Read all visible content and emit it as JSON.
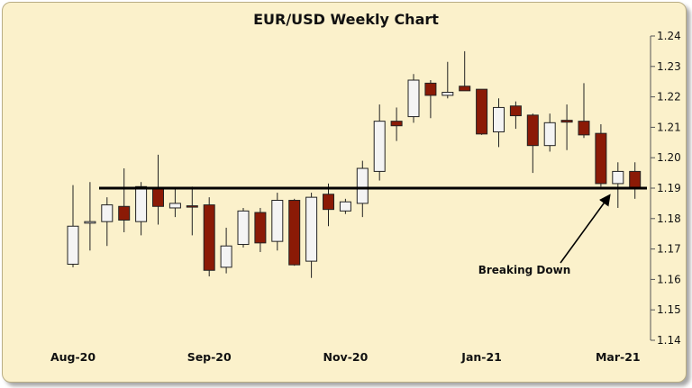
{
  "chart_data": {
    "type": "candlestick",
    "title": "EUR/USD Weekly Chart",
    "xlabel": "",
    "ylabel": "",
    "ylim": [
      1.14,
      1.24
    ],
    "yticks": [
      "1.14",
      "1.15",
      "1.16",
      "1.17",
      "1.18",
      "1.19",
      "1.20",
      "1.21",
      "1.22",
      "1.23",
      "1.24"
    ],
    "x_tick_labels": [
      {
        "label": "Aug-20",
        "index": 0
      },
      {
        "label": "Sep-20",
        "index": 8
      },
      {
        "label": "Nov-20",
        "index": 16
      },
      {
        "label": "Jan-21",
        "index": 24
      },
      {
        "label": "Mar-21",
        "index": 32
      }
    ],
    "colors": {
      "bullish": "#f4f4f4",
      "bearish": "#8b1a06",
      "outline": "#222222",
      "support": "#000000"
    },
    "candles": [
      {
        "open": 1.165,
        "high": 1.191,
        "low": 1.164,
        "close": 1.1775
      },
      {
        "open": 1.1785,
        "high": 1.192,
        "low": 1.1695,
        "close": 1.179
      },
      {
        "open": 1.179,
        "high": 1.187,
        "low": 1.171,
        "close": 1.1845
      },
      {
        "open": 1.184,
        "high": 1.1965,
        "low": 1.1755,
        "close": 1.1795
      },
      {
        "open": 1.179,
        "high": 1.192,
        "low": 1.1745,
        "close": 1.1905
      },
      {
        "open": 1.19,
        "high": 1.201,
        "low": 1.178,
        "close": 1.184
      },
      {
        "open": 1.1835,
        "high": 1.19,
        "low": 1.1805,
        "close": 1.185
      },
      {
        "open": 1.1842,
        "high": 1.1905,
        "low": 1.1745,
        "close": 1.1838
      },
      {
        "open": 1.1845,
        "high": 1.187,
        "low": 1.161,
        "close": 1.163
      },
      {
        "open": 1.164,
        "high": 1.177,
        "low": 1.162,
        "close": 1.171
      },
      {
        "open": 1.1715,
        "high": 1.1835,
        "low": 1.1705,
        "close": 1.1825
      },
      {
        "open": 1.182,
        "high": 1.1835,
        "low": 1.169,
        "close": 1.172
      },
      {
        "open": 1.1725,
        "high": 1.1885,
        "low": 1.1695,
        "close": 1.186
      },
      {
        "open": 1.186,
        "high": 1.1865,
        "low": 1.1645,
        "close": 1.1648
      },
      {
        "open": 1.166,
        "high": 1.1885,
        "low": 1.1605,
        "close": 1.187
      },
      {
        "open": 1.188,
        "high": 1.1915,
        "low": 1.1775,
        "close": 1.183
      },
      {
        "open": 1.1825,
        "high": 1.1865,
        "low": 1.1815,
        "close": 1.1855
      },
      {
        "open": 1.185,
        "high": 1.199,
        "low": 1.1805,
        "close": 1.1965
      },
      {
        "open": 1.1955,
        "high": 1.2175,
        "low": 1.1925,
        "close": 1.212
      },
      {
        "open": 1.212,
        "high": 1.2165,
        "low": 1.2055,
        "close": 1.2105
      },
      {
        "open": 1.2135,
        "high": 1.2275,
        "low": 1.2115,
        "close": 1.2255
      },
      {
        "open": 1.2245,
        "high": 1.2255,
        "low": 1.213,
        "close": 1.2205
      },
      {
        "open": 1.2205,
        "high": 1.2315,
        "low": 1.2195,
        "close": 1.2215
      },
      {
        "open": 1.2235,
        "high": 1.235,
        "low": 1.2225,
        "close": 1.222
      },
      {
        "open": 1.2225,
        "high": 1.2225,
        "low": 1.2075,
        "close": 1.2078
      },
      {
        "open": 1.2085,
        "high": 1.2195,
        "low": 1.2035,
        "close": 1.2165
      },
      {
        "open": 1.217,
        "high": 1.2185,
        "low": 1.2095,
        "close": 1.2138
      },
      {
        "open": 1.214,
        "high": 1.2145,
        "low": 1.195,
        "close": 1.204
      },
      {
        "open": 1.204,
        "high": 1.2145,
        "low": 1.202,
        "close": 1.2115
      },
      {
        "open": 1.2123,
        "high": 1.2175,
        "low": 1.2025,
        "close": 1.2117
      },
      {
        "open": 1.212,
        "high": 1.2245,
        "low": 1.2065,
        "close": 1.2075
      },
      {
        "open": 1.208,
        "high": 1.211,
        "low": 1.1905,
        "close": 1.1915
      },
      {
        "open": 1.1915,
        "high": 1.1985,
        "low": 1.1835,
        "close": 1.1955
      },
      {
        "open": 1.1955,
        "high": 1.1985,
        "low": 1.1865,
        "close": 1.19
      }
    ],
    "support_level": 1.19,
    "annotation": {
      "text": "Breaking Down",
      "points_to_index": 32
    }
  }
}
